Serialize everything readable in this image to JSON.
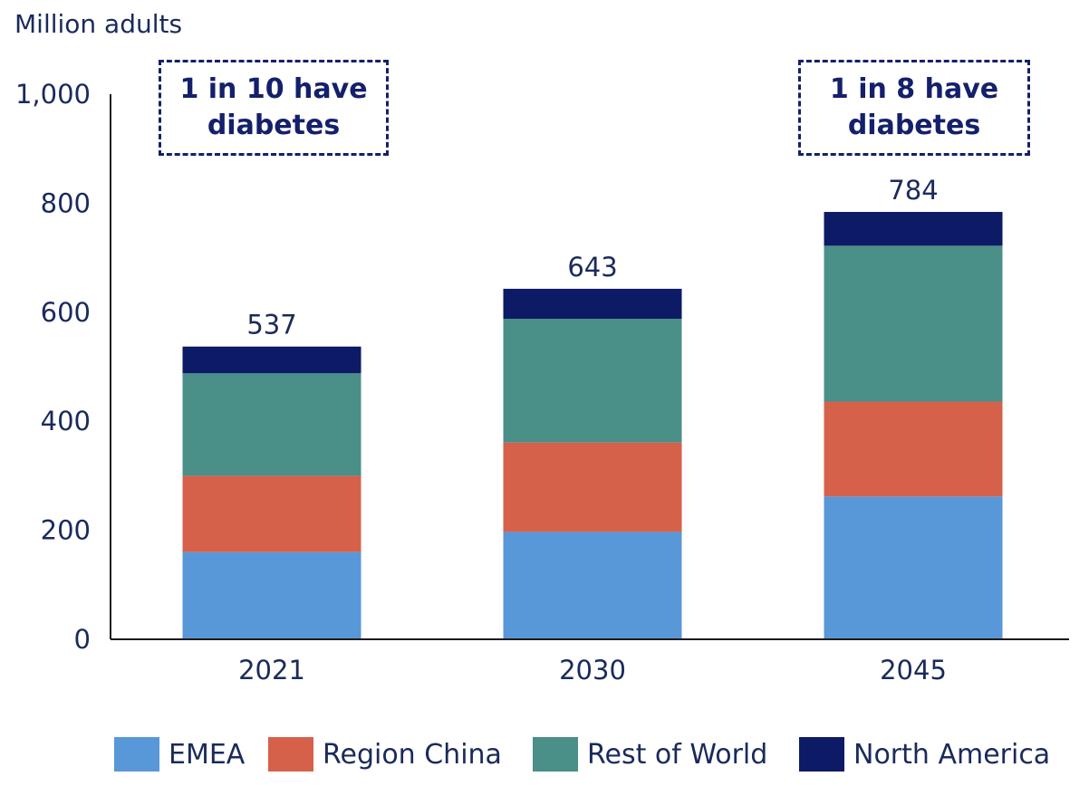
{
  "chart_data": {
    "type": "bar",
    "stacked": true,
    "ylabel": "Million adults",
    "ylim": [
      0,
      1000
    ],
    "yticks": [
      0,
      200,
      400,
      600,
      800,
      1000
    ],
    "ytick_labels": [
      "0",
      "200",
      "400",
      "600",
      "800",
      "1,000"
    ],
    "categories": [
      "2021",
      "2030",
      "2045"
    ],
    "series": [
      {
        "name": "EMEA",
        "color": "#5897d8",
        "values": [
          160,
          197,
          262
        ]
      },
      {
        "name": "Region China",
        "color": "#d6614b",
        "values": [
          140,
          164,
          174
        ]
      },
      {
        "name": "Rest of World",
        "color": "#4a8f88",
        "values": [
          188,
          227,
          286
        ]
      },
      {
        "name": "North America",
        "color": "#0d1a66",
        "values": [
          49,
          55,
          62
        ]
      }
    ],
    "totals": [
      537,
      643,
      784
    ],
    "legend_position": "bottom",
    "annotations": [
      {
        "line1": "1 in 10 have",
        "line2": "diabetes"
      },
      {
        "line1": "1 in 8 have",
        "line2": "diabetes"
      }
    ]
  }
}
